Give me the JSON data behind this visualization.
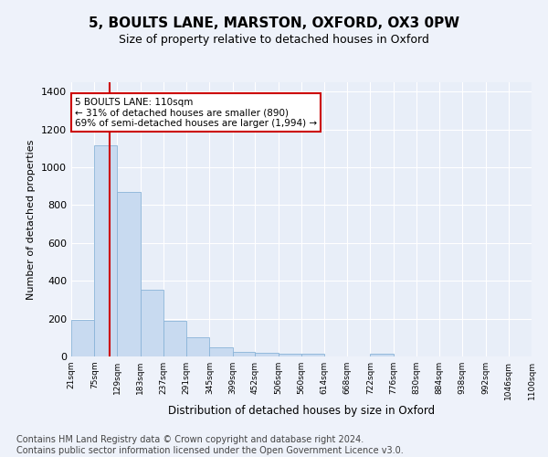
{
  "title": "5, BOULTS LANE, MARSTON, OXFORD, OX3 0PW",
  "subtitle": "Size of property relative to detached houses in Oxford",
  "xlabel": "Distribution of detached houses by size in Oxford",
  "ylabel": "Number of detached properties",
  "bar_color": "#c8daf0",
  "bar_edge_color": "#8ab4d8",
  "bins": [
    21,
    75,
    129,
    183,
    237,
    291,
    345,
    399,
    452,
    506,
    560,
    614,
    668,
    722,
    776,
    830,
    884,
    938,
    992,
    1046,
    1100
  ],
  "bin_labels": [
    "21sqm",
    "75sqm",
    "129sqm",
    "183sqm",
    "237sqm",
    "291sqm",
    "345sqm",
    "399sqm",
    "452sqm",
    "506sqm",
    "560sqm",
    "614sqm",
    "668sqm",
    "722sqm",
    "776sqm",
    "830sqm",
    "884sqm",
    "938sqm",
    "992sqm",
    "1046sqm",
    "1100sqm"
  ],
  "counts": [
    195,
    1115,
    870,
    355,
    190,
    100,
    50,
    25,
    18,
    15,
    13,
    0,
    0,
    13,
    0,
    0,
    0,
    0,
    0,
    0
  ],
  "property_size": 110,
  "property_line_color": "#cc0000",
  "annotation_text": "5 BOULTS LANE: 110sqm\n← 31% of detached houses are smaller (890)\n69% of semi-detached houses are larger (1,994) →",
  "annotation_box_color": "#ffffff",
  "annotation_box_edge_color": "#cc0000",
  "ylim": [
    0,
    1450
  ],
  "yticks": [
    0,
    200,
    400,
    600,
    800,
    1000,
    1200,
    1400
  ],
  "footer_text": "Contains HM Land Registry data © Crown copyright and database right 2024.\nContains public sector information licensed under the Open Government Licence v3.0.",
  "background_color": "#eef2fa",
  "plot_bg_color": "#e8eef8",
  "grid_color": "#ffffff",
  "title_fontsize": 11,
  "subtitle_fontsize": 9,
  "footer_fontsize": 7
}
